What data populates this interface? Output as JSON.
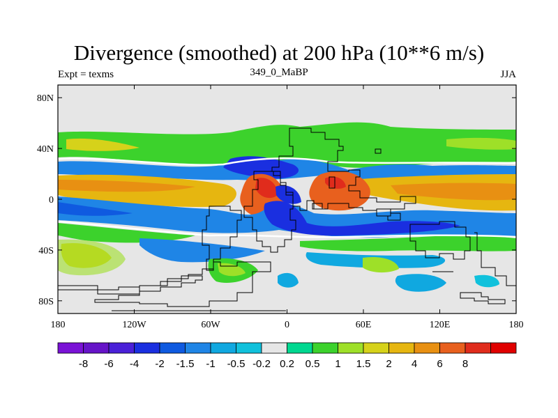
{
  "title": "Divergence (smoothed) at 200 hPa (10**6 m/s)",
  "subtitle_left": "Expt = texms",
  "subtitle_center": "349_0_MaBP",
  "subtitle_right": "JJA",
  "map": {
    "lon_range": [
      -180,
      180
    ],
    "lat_range": [
      -90,
      90
    ],
    "lat_ticks": [
      {
        "value": 80,
        "label": "80N"
      },
      {
        "value": 40,
        "label": "40N"
      },
      {
        "value": 0,
        "label": "0"
      },
      {
        "value": -40,
        "label": "40S"
      },
      {
        "value": -80,
        "label": "80S"
      }
    ],
    "lon_ticks": [
      {
        "value": -180,
        "label": "180"
      },
      {
        "value": -120,
        "label": "120W"
      },
      {
        "value": -60,
        "label": "60W"
      },
      {
        "value": 0,
        "label": "0"
      },
      {
        "value": 60,
        "label": "60E"
      },
      {
        "value": 120,
        "label": "120E"
      },
      {
        "value": 180,
        "label": "180"
      }
    ],
    "ocean_color": "#e6e6e6"
  },
  "colorbar": {
    "colors": [
      "#7a12d6",
      "#6614c8",
      "#4a20d8",
      "#1a2fe0",
      "#0f5ae0",
      "#1f85e6",
      "#10a8e0",
      "#10c1dc",
      "#e6e6e6",
      "#00d890",
      "#3cd22c",
      "#9ee028",
      "#d6d21a",
      "#e6b610",
      "#e89012",
      "#e8601e",
      "#e02c1c",
      "#e00000"
    ],
    "labels": [
      "-8",
      "-6",
      "-4",
      "-2",
      "-1.5",
      "-1",
      "-0.5",
      "-0.2",
      "0.2",
      "0.5",
      "1",
      "1.5",
      "2",
      "4",
      "6",
      "8"
    ]
  }
}
